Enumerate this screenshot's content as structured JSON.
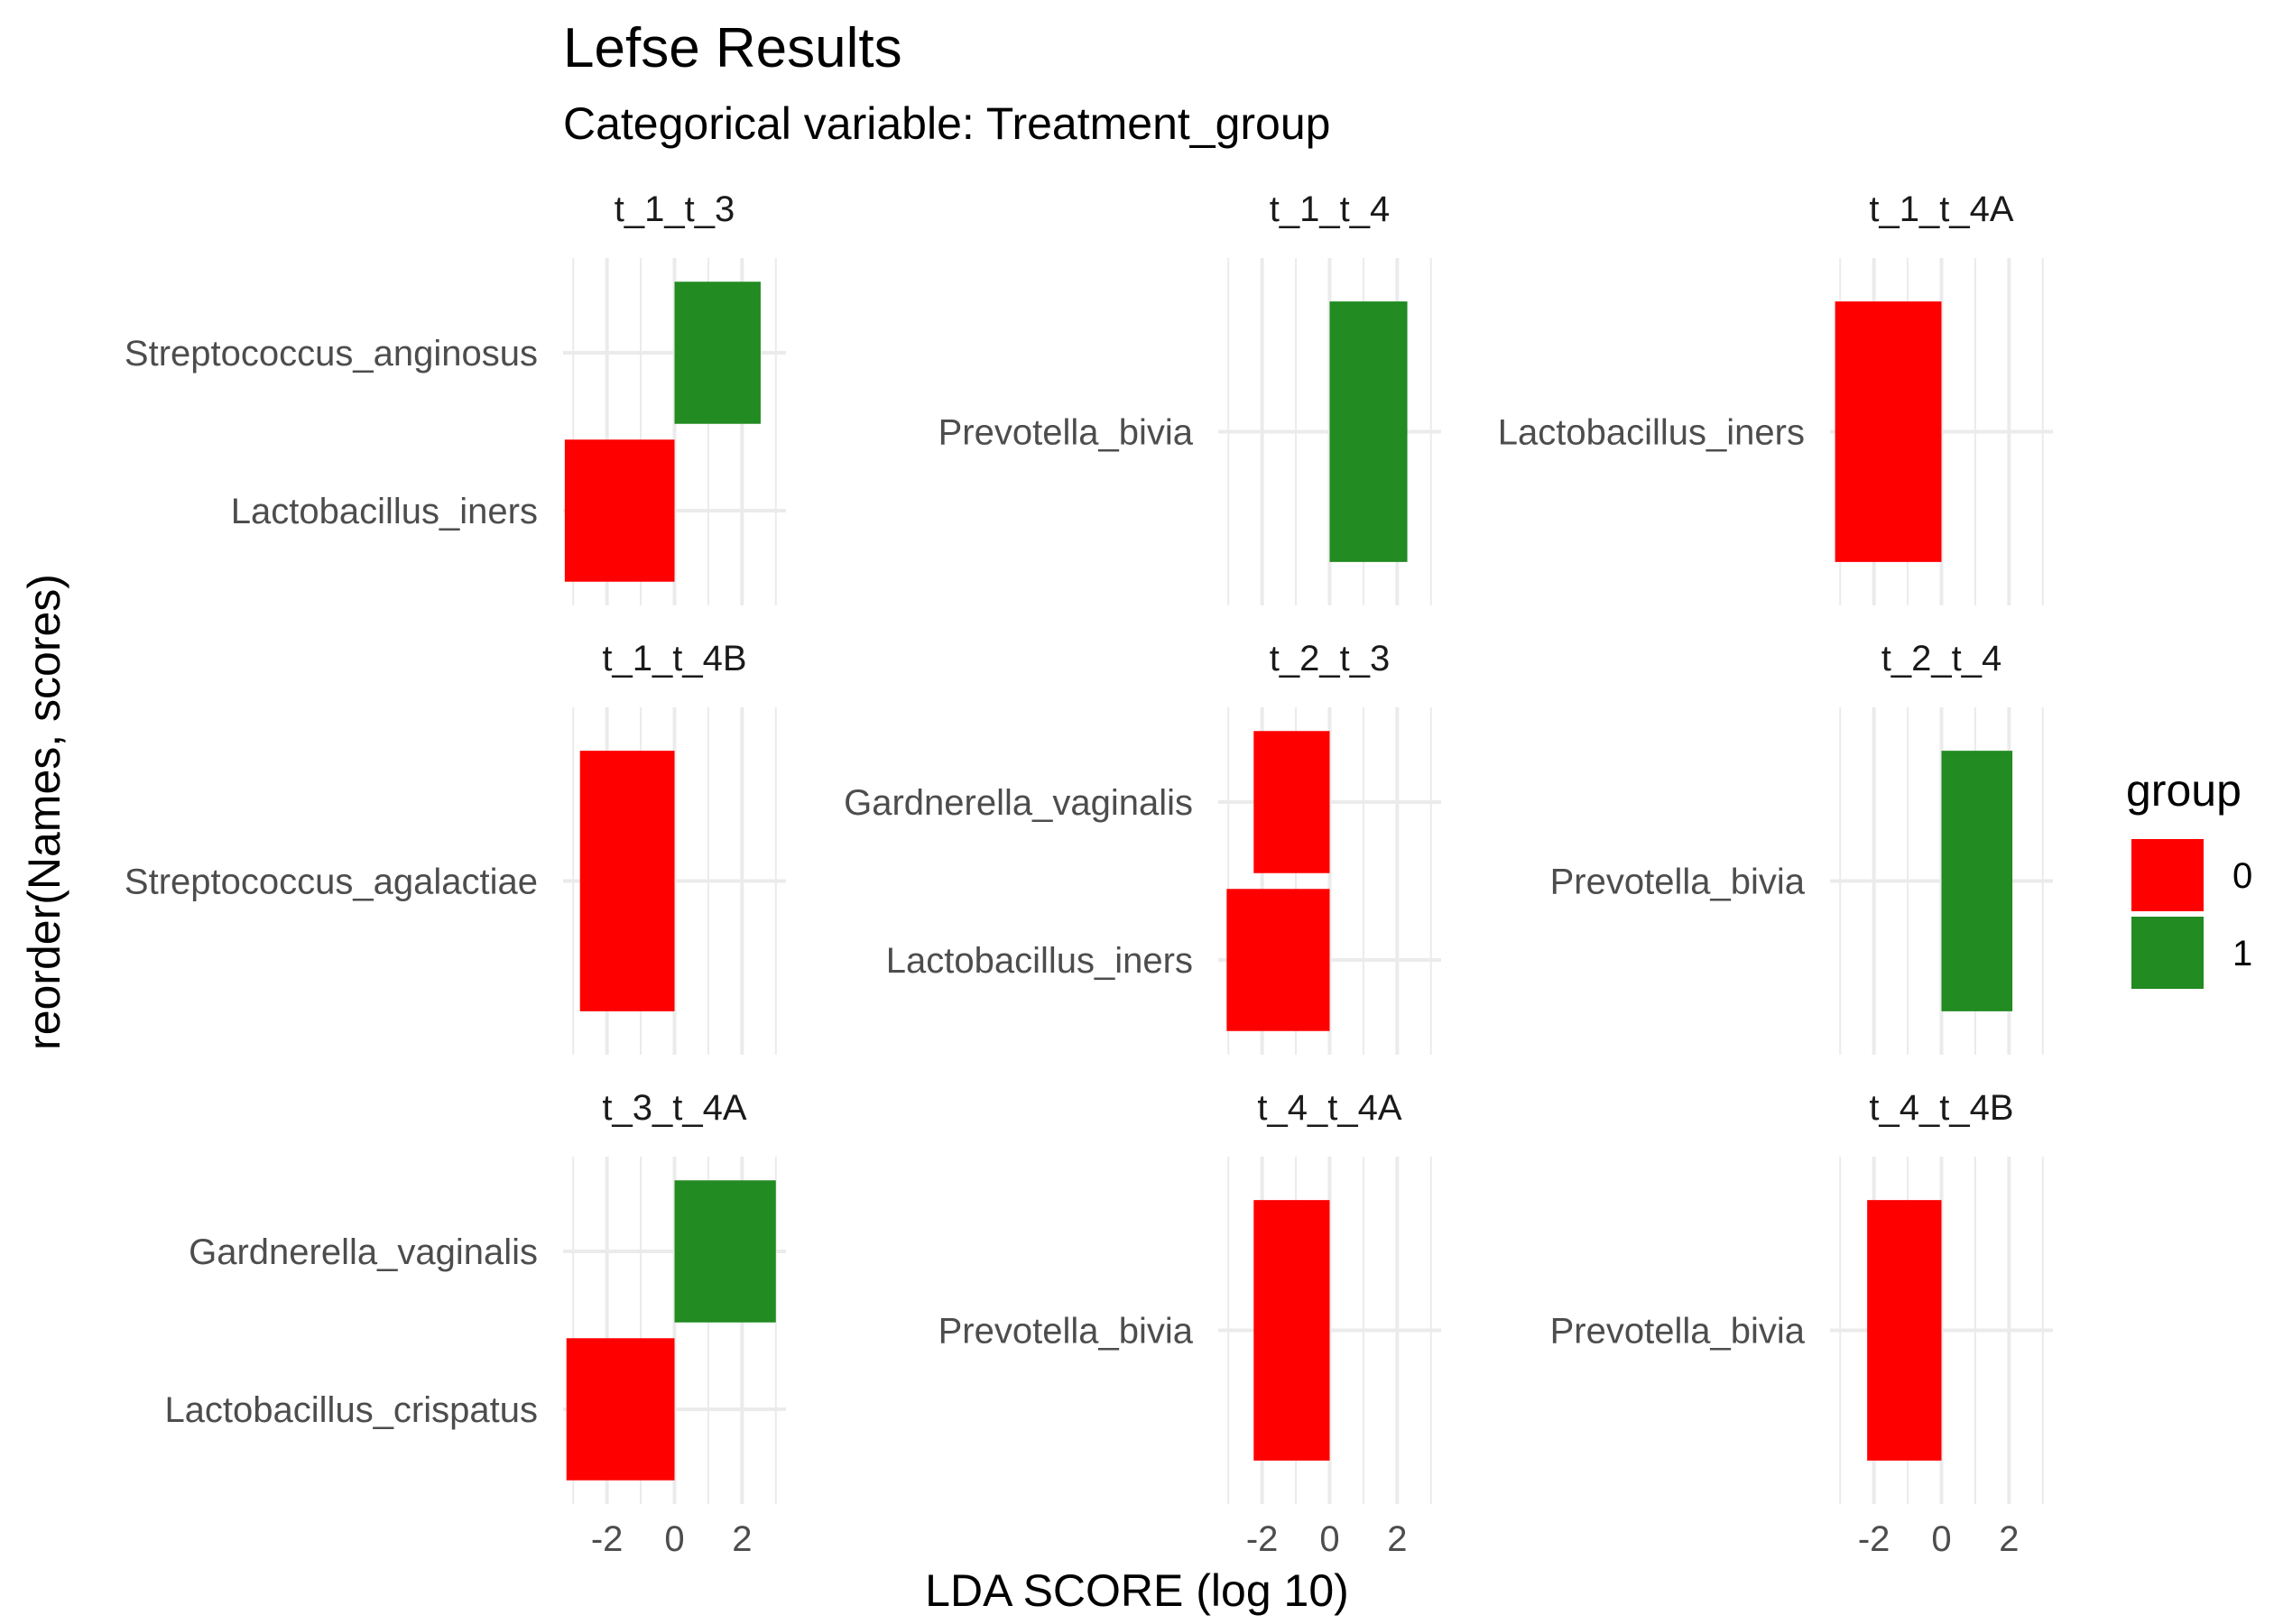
{
  "chart_data": {
    "type": "bar",
    "orientation": "horizontal",
    "title": "Lefse Results",
    "subtitle": "Categorical variable: Treatment_group",
    "xlabel": "LDA SCORE (log 10)",
    "ylabel": "reorder(Names, scores)",
    "x_ticks": [
      "-2",
      "0",
      "2"
    ],
    "xlim": [
      -3.3,
      3.3
    ],
    "grid": true,
    "legend": {
      "title": "group",
      "position": "right",
      "entries": [
        {
          "label": "0",
          "color": "#FF0000"
        },
        {
          "label": "1",
          "color": "#228B22"
        }
      ]
    },
    "facets": [
      {
        "name": "t_1_t_3",
        "bars": [
          {
            "label": "Streptococcus_anginosus",
            "value": 2.55,
            "group": "1"
          },
          {
            "label": "Lactobacillus_iners",
            "value": -3.25,
            "group": "0"
          }
        ]
      },
      {
        "name": "t_1_t_4",
        "bars": [
          {
            "label": "Prevotella_bivia",
            "value": 2.3,
            "group": "1"
          }
        ]
      },
      {
        "name": "t_1_t_4A",
        "bars": [
          {
            "label": "Lactobacillus_iners",
            "value": -3.15,
            "group": "0"
          }
        ]
      },
      {
        "name": "t_1_t_4B",
        "bars": [
          {
            "label": "Streptococcus_agalactiae",
            "value": -2.8,
            "group": "0"
          }
        ]
      },
      {
        "name": "t_2_t_3",
        "bars": [
          {
            "label": "Gardnerella_vaginalis",
            "value": -2.25,
            "group": "0"
          },
          {
            "label": "Lactobacillus_iners",
            "value": -3.05,
            "group": "0"
          }
        ]
      },
      {
        "name": "t_2_t_4",
        "bars": [
          {
            "label": "Prevotella_bivia",
            "value": 2.1,
            "group": "1"
          }
        ]
      },
      {
        "name": "t_3_t_4A",
        "bars": [
          {
            "label": "Gardnerella_vaginalis",
            "value": 3.0,
            "group": "1"
          },
          {
            "label": "Lactobacillus_crispatus",
            "value": -3.2,
            "group": "0"
          }
        ]
      },
      {
        "name": "t_4_t_4A",
        "bars": [
          {
            "label": "Prevotella_bivia",
            "value": -2.25,
            "group": "0"
          }
        ]
      },
      {
        "name": "t_4_t_4B",
        "bars": [
          {
            "label": "Prevotella_bivia",
            "value": -2.2,
            "group": "0"
          }
        ]
      }
    ]
  }
}
